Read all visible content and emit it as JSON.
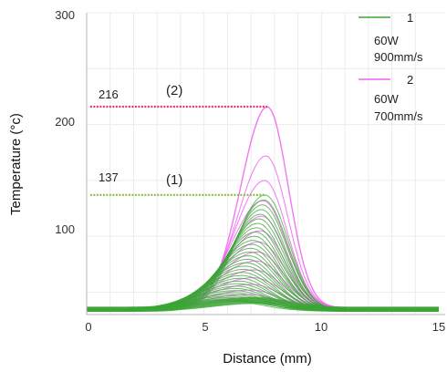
{
  "chart_data": {
    "type": "line",
    "xlabel": "Distance (mm)",
    "ylabel": "Temperature (°c)",
    "xlim": [
      0,
      15
    ],
    "ylim": [
      30,
      300
    ],
    "x_ticks": [
      "0",
      "5",
      "10",
      "15"
    ],
    "y_ticks": [
      "100",
      "200",
      "300"
    ],
    "grid": true,
    "legend_placement": "top-right",
    "colors": {
      "series1": "#3aa635",
      "series2": "#f060f0",
      "peak1_line": "#88bb44",
      "peak2_line": "#dd3377"
    },
    "series": [
      {
        "id": "1",
        "power": "60W",
        "speed": "900mm/s",
        "peak_value": 137,
        "peak_x": 7.6
      },
      {
        "id": "2",
        "power": "60W",
        "speed": "700mm/s",
        "peak_value": 216,
        "peak_x": 7.7
      }
    ],
    "annotations": [
      {
        "value_label": "216",
        "tag": "(2)",
        "y": 216
      },
      {
        "value_label": "137",
        "tag": "(1)",
        "y": 137
      }
    ],
    "legend": [
      {
        "id": "1",
        "line1": "60W",
        "line2": "900mm/s"
      },
      {
        "id": "2",
        "line1": "60W",
        "line2": "700mm/s"
      }
    ]
  }
}
